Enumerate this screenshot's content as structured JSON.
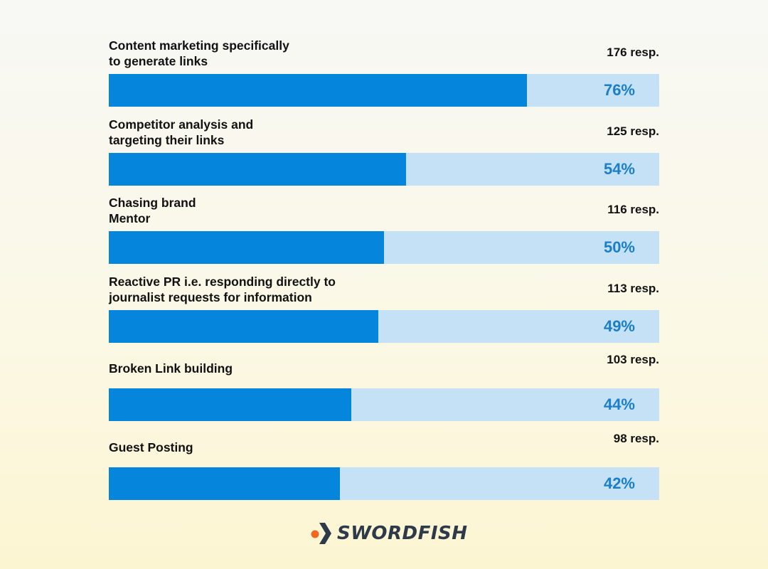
{
  "chart_data": {
    "type": "bar",
    "orientation": "horizontal",
    "categories": [
      "Content marketing specifically\nto generate links",
      "Competitor analysis and\ntargeting their links",
      "Chasing brand\nMentor",
      "Reactive PR i.e. responding directly to\njournalist requests for information",
      "Broken Link building",
      "Guest Posting"
    ],
    "values": [
      76,
      54,
      50,
      49,
      44,
      42
    ],
    "value_labels": [
      "76%",
      "54%",
      "50%",
      "49%",
      "44%",
      "42%"
    ],
    "responses": [
      "176 resp.",
      "125 resp.",
      "116 resp.",
      "113 resp.",
      "103 resp.",
      "98 resp."
    ],
    "xlim": [
      0,
      100
    ],
    "colors": {
      "fill": "#0585dc",
      "track": "#c5e1f5",
      "value_text": "#1a7fc8"
    },
    "grid": false,
    "legend": "none"
  },
  "brand": {
    "name": "SWORDFISH",
    "icon": "swordfish-logo-icon",
    "colors": {
      "dot": "#f26522",
      "arrow": "#2d3a4a",
      "text": "#2d3a4a"
    }
  }
}
